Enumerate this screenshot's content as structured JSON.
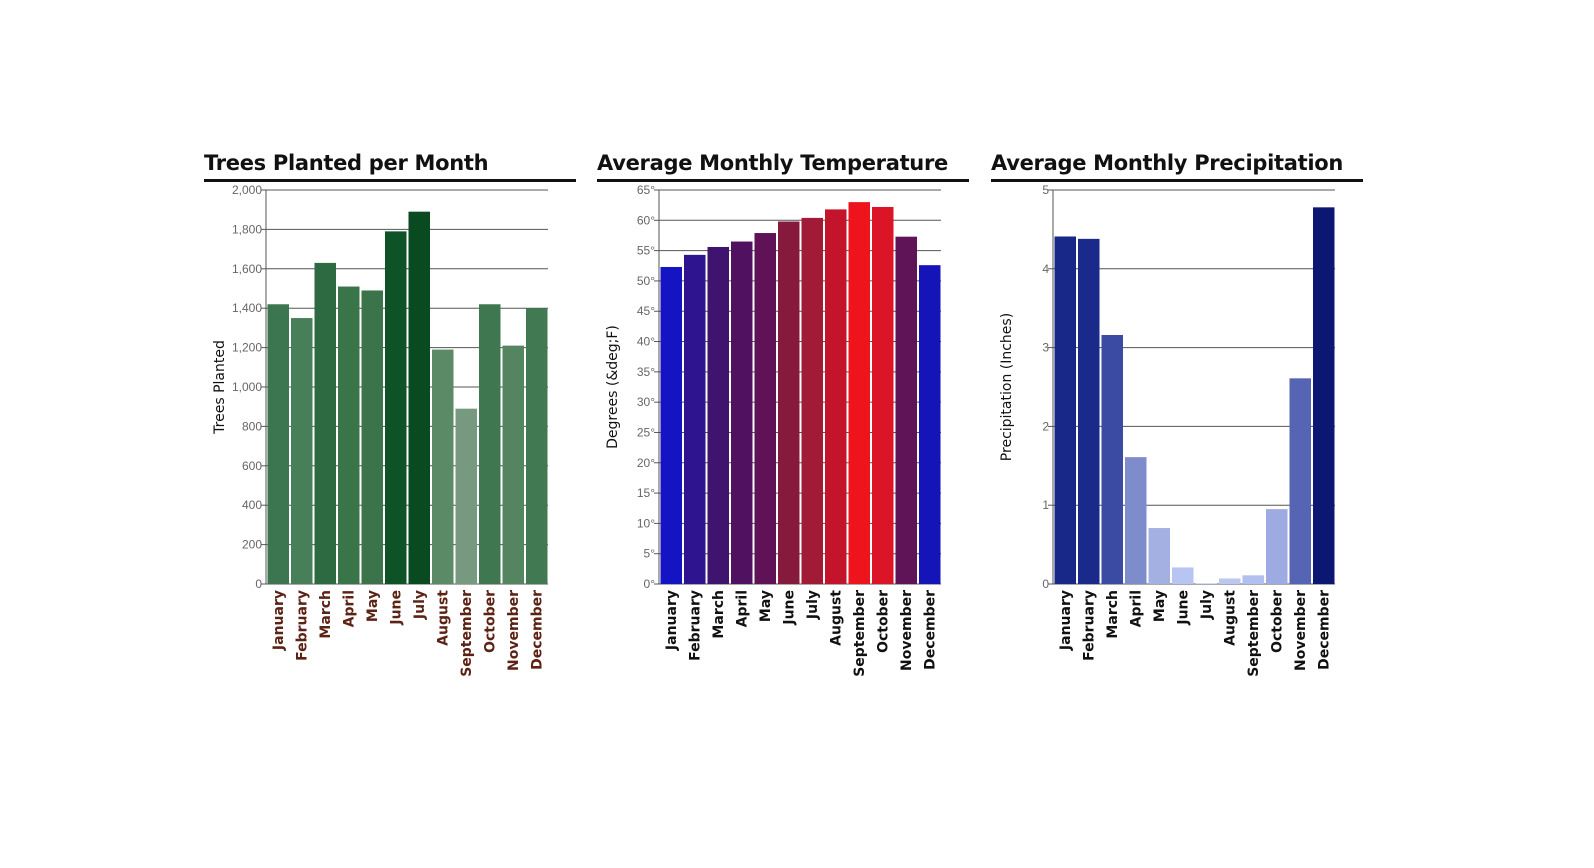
{
  "charts": [
    {
      "title": "Trees Planted per Month",
      "chart_data": {
        "type": "bar",
        "title": "Trees Planted per Month",
        "ylabel": "Trees Planted",
        "xlabel": "",
        "categories": [
          "January",
          "February",
          "March",
          "April",
          "May",
          "June",
          "July",
          "August",
          "September",
          "October",
          "November",
          "December"
        ],
        "values": [
          1420,
          1350,
          1630,
          1510,
          1490,
          1790,
          1890,
          1190,
          890,
          1420,
          1210,
          1400
        ],
        "ylim": [
          0,
          2000
        ],
        "yticks": [
          0,
          200,
          400,
          600,
          800,
          1000,
          1200,
          1400,
          1600,
          1800,
          2000
        ],
        "ytick_labels": [
          "0",
          "200",
          "400",
          "600",
          "800",
          "1,000",
          "1,200",
          "1,400",
          "1,600",
          "1,800",
          "2,000"
        ],
        "bar_colors": [
          "#3c7650",
          "#467f58",
          "#2d6a42",
          "#3a7449",
          "#3b744a",
          "#0e5227",
          "#0a4a20",
          "#5a8a66",
          "#77997f",
          "#3f7751",
          "#558460",
          "#417a52"
        ],
        "xlabel_color": "#5c2214",
        "grid": "horizontal"
      }
    },
    {
      "title": "Average Monthly Temperature",
      "chart_data": {
        "type": "bar",
        "title": "Average Monthly Temperature",
        "ylabel": "Degrees (&deg;F)",
        "xlabel": "",
        "categories": [
          "January",
          "February",
          "March",
          "April",
          "May",
          "June",
          "July",
          "August",
          "September",
          "October",
          "November",
          "December"
        ],
        "values": [
          52.3,
          54.3,
          55.6,
          56.5,
          57.9,
          59.8,
          60.4,
          61.8,
          63.0,
          62.2,
          57.3,
          52.6
        ],
        "ylim": [
          0,
          65
        ],
        "yticks": [
          0,
          5,
          10,
          15,
          20,
          25,
          30,
          35,
          40,
          45,
          50,
          55,
          60,
          65
        ],
        "ytick_labels": [
          "0°",
          "5°",
          "10°",
          "15°",
          "20°",
          "25°",
          "30°",
          "35°",
          "40°",
          "45°",
          "50°",
          "55°",
          "60°",
          "65°"
        ],
        "bar_colors": [
          "#1414c4",
          "#2e148f",
          "#3f146f",
          "#501260",
          "#601256",
          "#861a3c",
          "#a11a36",
          "#c3142c",
          "#ee141c",
          "#db1426",
          "#5e1456",
          "#1414b8"
        ],
        "xlabel_color": "#111111",
        "grid": "horizontal"
      }
    },
    {
      "title": "Average Monthly Precipitation",
      "chart_data": {
        "type": "bar",
        "title": "Average Monthly Precipitation",
        "ylabel": "Precipitation (Inches)",
        "xlabel": "",
        "categories": [
          "January",
          "February",
          "March",
          "April",
          "May",
          "June",
          "July",
          "August",
          "September",
          "October",
          "November",
          "December"
        ],
        "values": [
          4.41,
          4.38,
          3.16,
          1.61,
          0.71,
          0.21,
          0.01,
          0.07,
          0.11,
          0.95,
          2.61,
          4.78
        ],
        "ylim": [
          0,
          5
        ],
        "yticks": [
          0,
          1,
          2,
          3,
          4,
          5
        ],
        "ytick_labels": [
          "0",
          "1",
          "2",
          "3",
          "4",
          "5"
        ],
        "bar_colors": [
          "#182888",
          "#1a2a8a",
          "#3b4ba3",
          "#7f8ccc",
          "#a5b0e2",
          "#b8c4f2",
          "#c9d3f8",
          "#bcc7f2",
          "#b3bff0",
          "#9eaae2",
          "#5565b3",
          "#0c1772"
        ],
        "xlabel_color": "#111111",
        "grid": "horizontal"
      }
    }
  ]
}
